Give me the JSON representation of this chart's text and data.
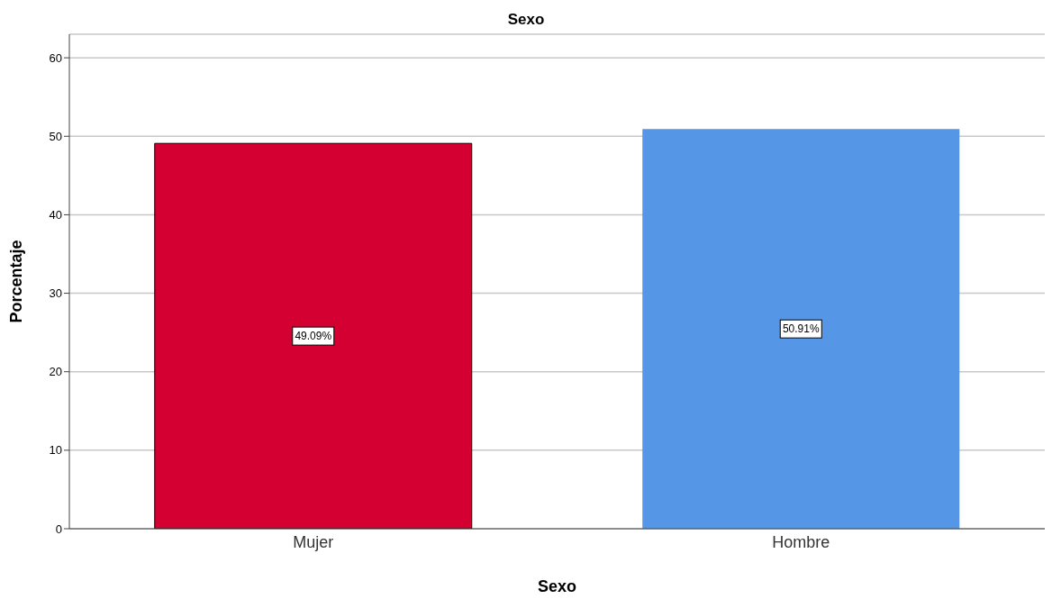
{
  "chart_data": {
    "type": "bar",
    "title": "Sexo",
    "xlabel": "Sexo",
    "ylabel": "Porcentaje",
    "categories": [
      "Mujer",
      "Hombre"
    ],
    "values": [
      49.09,
      50.91
    ],
    "colors": [
      "#d50032",
      "#5596e6"
    ],
    "value_labels": [
      "49.09%",
      "50.91%"
    ],
    "ylim": [
      0,
      63
    ],
    "yticks": [
      0,
      10,
      20,
      30,
      40,
      50,
      60
    ],
    "grid": "y"
  }
}
